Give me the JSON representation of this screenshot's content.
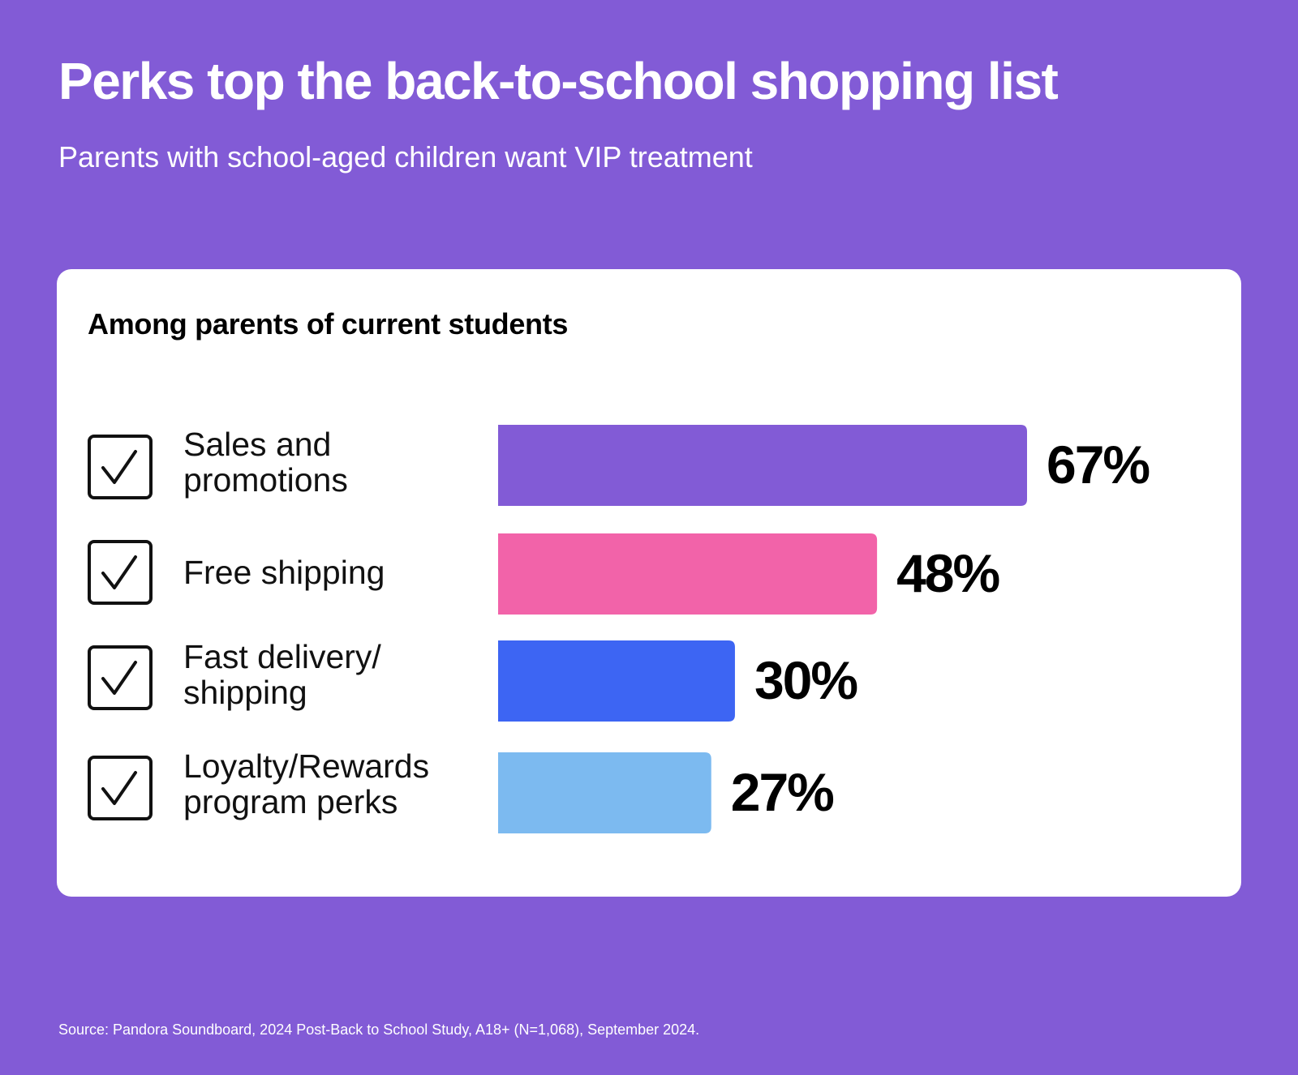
{
  "header": {
    "title": "Perks top the back-to-school shopping list",
    "subtitle": "Parents with school-aged children want VIP treatment"
  },
  "card": {
    "heading": "Among parents of current students"
  },
  "rows": [
    {
      "label": "Sales and\npromotions",
      "icon": "checkbox-checked-icon"
    },
    {
      "label": "Free shipping",
      "icon": "checkbox-checked-icon"
    },
    {
      "label": "Fast delivery/\nshipping",
      "icon": "checkbox-checked-icon"
    },
    {
      "label": "Loyalty/Rewards\nprogram perks",
      "icon": "checkbox-checked-icon"
    }
  ],
  "chart_data": {
    "type": "bar",
    "orientation": "horizontal",
    "title": "Among parents of current students",
    "categories": [
      "Sales and promotions",
      "Free shipping",
      "Fast delivery/shipping",
      "Loyalty/Rewards program perks"
    ],
    "values": [
      67,
      48,
      30,
      27
    ],
    "value_labels": [
      "67%",
      "48%",
      "30%",
      "27%"
    ],
    "unit": "%",
    "colors": [
      "#825BD6",
      "#F263A9",
      "#3D65F3",
      "#7CBAF0"
    ],
    "grid": false,
    "legend": "none"
  },
  "theme": {
    "background": "#825BD6",
    "card": "#FFFFFF",
    "text_dark": "#111111",
    "text_light": "#FFFFFF"
  },
  "footer": {
    "source": "Source: Pandora Soundboard, 2024 Post-Back to School Study, A18+ (N=1,068), September 2024."
  }
}
